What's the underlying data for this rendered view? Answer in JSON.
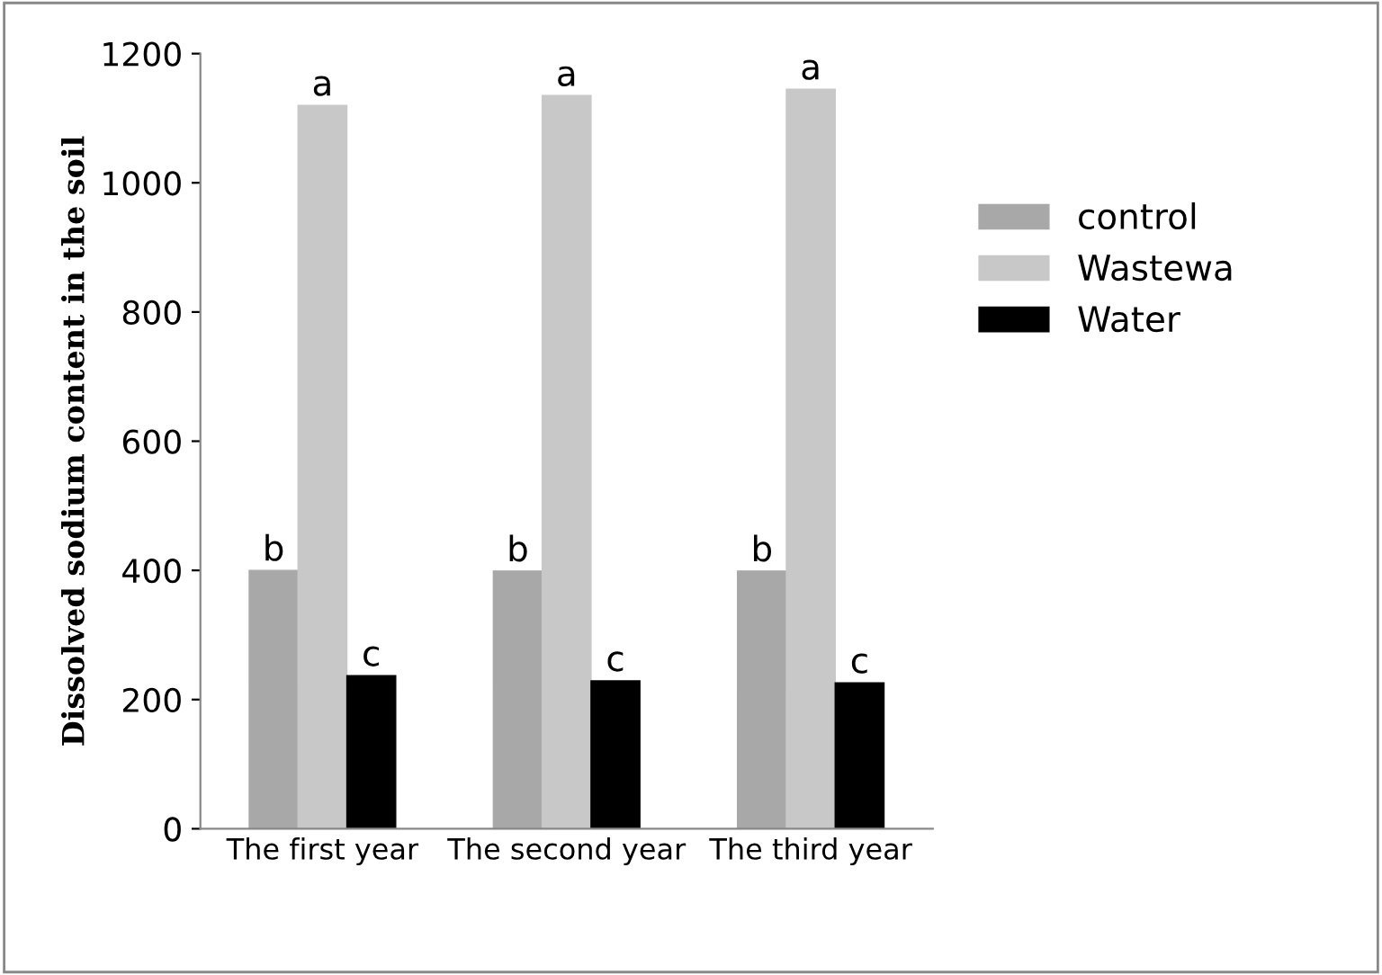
{
  "chart_data": {
    "type": "bar",
    "ylabel": "Dissolved sodium content in the soil",
    "categories": [
      "The first year",
      "The second year",
      "The third year"
    ],
    "series": [
      {
        "name": "control",
        "color": "#a8a8a8",
        "values": [
          400,
          399,
          399
        ]
      },
      {
        "name": "Wastewa",
        "color": "#c8c8c8",
        "values": [
          1120,
          1135,
          1145
        ]
      },
      {
        "name": "Water",
        "color": "#000000",
        "values": [
          237,
          229,
          226
        ]
      }
    ],
    "ylim": [
      0,
      1200
    ],
    "yticks": [
      0,
      200,
      400,
      600,
      800,
      1000,
      1200
    ],
    "grid": false,
    "legend": "right",
    "annotations": [
      "b",
      "a",
      "c",
      "b",
      "a",
      "c",
      "b",
      "a",
      "c"
    ]
  }
}
